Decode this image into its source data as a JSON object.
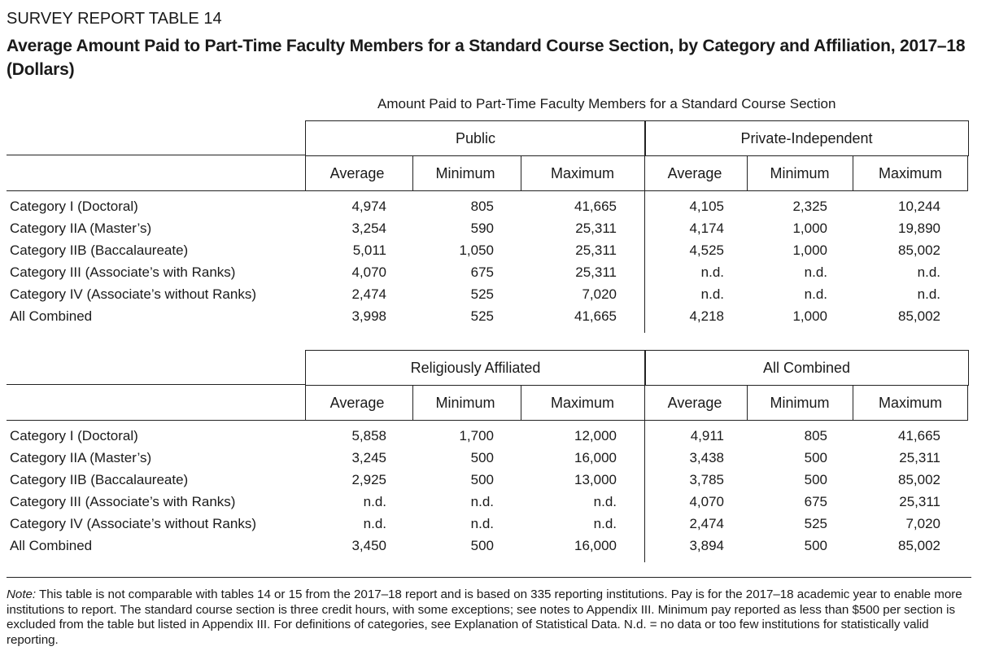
{
  "report_label": "SURVEY REPORT TABLE 14",
  "title": "Average Amount Paid to Part-Time Faculty Members for a Standard Course Section, by Category and Affiliation, 2017–18 (Dollars)",
  "super_header": "Amount Paid to Part-Time Faculty Members for a Standard Course Section",
  "column_headers": [
    "Average",
    "Minimum",
    "Maximum"
  ],
  "row_labels": [
    "Category I (Doctoral)",
    "Category IIA (Master’s)",
    "Category IIB (Baccalaureate)",
    "Category III (Associate’s with Ranks)",
    "Category IV (Associate’s without Ranks)",
    "All Combined"
  ],
  "panels": [
    {
      "groups": [
        {
          "name": "Public",
          "rows": [
            [
              "4,974",
              "805",
              "41,665"
            ],
            [
              "3,254",
              "590",
              "25,311"
            ],
            [
              "5,011",
              "1,050",
              "25,311"
            ],
            [
              "4,070",
              "675",
              "25,311"
            ],
            [
              "2,474",
              "525",
              "7,020"
            ],
            [
              "3,998",
              "525",
              "41,665"
            ]
          ]
        },
        {
          "name": "Private-Independent",
          "rows": [
            [
              "4,105",
              "2,325",
              "10,244"
            ],
            [
              "4,174",
              "1,000",
              "19,890"
            ],
            [
              "4,525",
              "1,000",
              "85,002"
            ],
            [
              "n.d.",
              "n.d.",
              "n.d."
            ],
            [
              "n.d.",
              "n.d.",
              "n.d."
            ],
            [
              "4,218",
              "1,000",
              "85,002"
            ]
          ]
        }
      ]
    },
    {
      "groups": [
        {
          "name": "Religiously Affiliated",
          "rows": [
            [
              "5,858",
              "1,700",
              "12,000"
            ],
            [
              "3,245",
              "500",
              "16,000"
            ],
            [
              "2,925",
              "500",
              "13,000"
            ],
            [
              "n.d.",
              "n.d.",
              "n.d."
            ],
            [
              "n.d.",
              "n.d.",
              "n.d."
            ],
            [
              "3,450",
              "500",
              "16,000"
            ]
          ]
        },
        {
          "name": "All Combined",
          "rows": [
            [
              "4,911",
              "805",
              "41,665"
            ],
            [
              "3,438",
              "500",
              "25,311"
            ],
            [
              "3,785",
              "500",
              "85,002"
            ],
            [
              "4,070",
              "675",
              "25,311"
            ],
            [
              "2,474",
              "525",
              "7,020"
            ],
            [
              "3,894",
              "500",
              "85,002"
            ]
          ]
        }
      ]
    }
  ],
  "note": {
    "label": "Note:",
    "text": "This table is not comparable with tables 14 or 15 from the 2017–18 report and is based on 335 reporting institutions. Pay is for the 2017–18 academic year to enable more institutions to report. The standard course section is three credit hours, with some exceptions; see notes to Appendix III. Minimum pay reported as less than $500 per section is excluded from the table but listed in Appendix III. For definitions of categories, see Explanation of Statistical Data. N.d. = no data or too few institutions for statistically valid reporting."
  }
}
